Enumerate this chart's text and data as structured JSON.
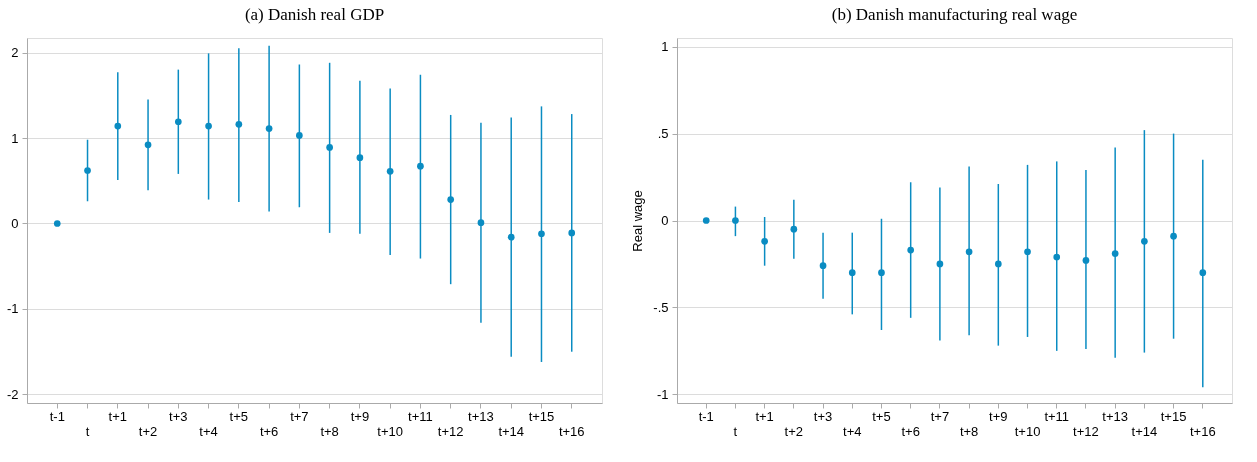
{
  "chart_data": [
    {
      "type": "scatter",
      "title": "(a) Danish real GDP",
      "categories": [
        "t-1",
        "t",
        "t+1",
        "t+2",
        "t+3",
        "t+4",
        "t+5",
        "t+6",
        "t+7",
        "t+8",
        "t+9",
        "t+10",
        "t+11",
        "t+12",
        "t+13",
        "t+14",
        "t+15",
        "t+16"
      ],
      "series": [
        {
          "color": "#0a8cc2",
          "values": [
            0,
            0.62,
            1.14,
            0.92,
            1.19,
            1.14,
            1.16,
            1.11,
            1.03,
            0.89,
            0.77,
            0.61,
            0.67,
            0.28,
            0.01,
            -0.16,
            -0.12,
            -0.11
          ],
          "errors": [
            null,
            [
              0.26,
              0.98
            ],
            [
              0.51,
              1.77
            ],
            [
              0.39,
              1.45
            ],
            [
              0.58,
              1.8
            ],
            [
              0.28,
              1.99
            ],
            [
              0.25,
              2.05
            ],
            [
              0.14,
              2.08
            ],
            [
              0.19,
              1.86
            ],
            [
              -0.11,
              1.88
            ],
            [
              -0.12,
              1.67
            ],
            [
              -0.37,
              1.58
            ],
            [
              -0.41,
              1.74
            ],
            [
              -0.71,
              1.27
            ],
            [
              -1.16,
              1.18
            ],
            [
              -1.56,
              1.24
            ],
            [
              -1.62,
              1.37
            ],
            [
              -1.5,
              1.28
            ]
          ]
        }
      ],
      "ylim": [
        -2.1,
        2.17
      ],
      "yticks": [
        -2,
        -1,
        0,
        1,
        2
      ],
      "grid": "y",
      "marker": "circle"
    },
    {
      "type": "scatter",
      "title": "(b) Danish manufacturing real wage",
      "ylabel": "Real wage",
      "categories": [
        "t-1",
        "t",
        "t+1",
        "t+2",
        "t+3",
        "t+4",
        "t+5",
        "t+6",
        "t+7",
        "t+8",
        "t+9",
        "t+10",
        "t+11",
        "t+12",
        "t+13",
        "t+14",
        "t+15",
        "t+16"
      ],
      "series": [
        {
          "color": "#0a8cc2",
          "values": [
            0,
            0,
            -0.12,
            -0.05,
            -0.26,
            -0.3,
            -0.3,
            -0.17,
            -0.25,
            -0.18,
            -0.25,
            -0.18,
            -0.21,
            -0.23,
            -0.19,
            -0.12,
            -0.09,
            -0.3
          ],
          "errors": [
            null,
            [
              -0.09,
              0.08
            ],
            [
              -0.26,
              0.02
            ],
            [
              -0.22,
              0.12
            ],
            [
              -0.45,
              -0.07
            ],
            [
              -0.54,
              -0.07
            ],
            [
              -0.63,
              0.01
            ],
            [
              -0.56,
              0.22
            ],
            [
              -0.69,
              0.19
            ],
            [
              -0.66,
              0.31
            ],
            [
              -0.72,
              0.21
            ],
            [
              -0.67,
              0.32
            ],
            [
              -0.75,
              0.34
            ],
            [
              -0.74,
              0.29
            ],
            [
              -0.79,
              0.42
            ],
            [
              -0.76,
              0.52
            ],
            [
              -0.68,
              0.5
            ],
            [
              -0.96,
              0.35
            ]
          ]
        }
      ],
      "ylim": [
        -1.05,
        1.05
      ],
      "yticks": [
        {
          "value": -1,
          "label": "-1"
        },
        {
          "value": -0.5,
          "label": "-.5"
        },
        0,
        {
          "value": 0.5,
          "label": ".5"
        },
        1
      ],
      "grid": "y",
      "marker": "circle"
    }
  ]
}
